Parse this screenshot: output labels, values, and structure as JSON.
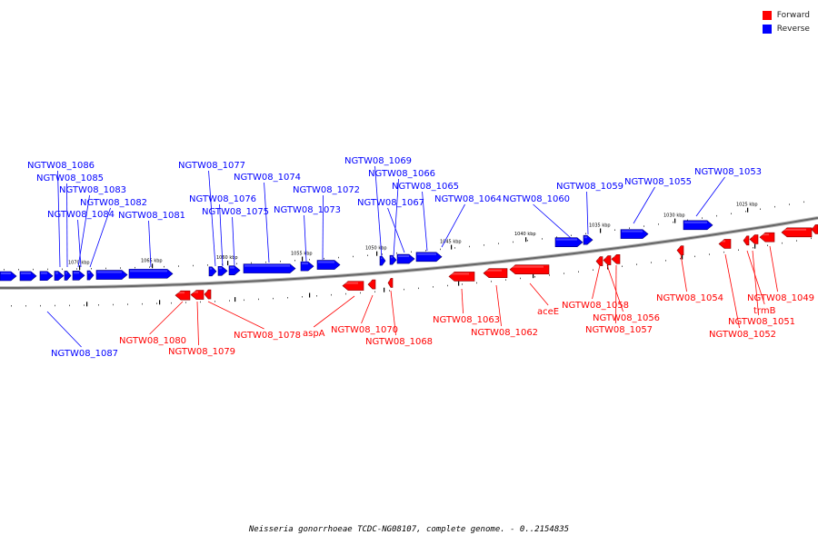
{
  "legend": {
    "forward_label": "Forward",
    "reverse_label": "Reverse",
    "forward_color": "#ff0000",
    "reverse_color": "#0000ff"
  },
  "footer": "Neisseria gonorrhoeae TCDC-NG08107, complete genome. - 0..2154835",
  "ticks": [
    "1070 kbp",
    "1065 kbp",
    "1060 kbp",
    "1055 kbp",
    "1050 kbp",
    "1045 kbp",
    "1040 kbp",
    "1035 kbp",
    "1030 kbp",
    "1025 kbp"
  ],
  "genes": {
    "reverse": [
      "NGTW08_1087",
      "NGTW08_1086",
      "NGTW08_1085",
      "NGTW08_1083",
      "NGTW08_1084",
      "NGTW08_1082",
      "NGTW08_1081",
      "NGTW08_1077",
      "NGTW08_1076",
      "NGTW08_1075",
      "NGTW08_1074",
      "NGTW08_1072",
      "NGTW08_1073",
      "NGTW08_1069",
      "NGTW08_1066",
      "NGTW08_1067",
      "NGTW08_1065",
      "NGTW08_1064",
      "NGTW08_1060",
      "NGTW08_1059",
      "NGTW08_1055",
      "NGTW08_1053"
    ],
    "forward": [
      "NGTW08_1080",
      "NGTW08_1079",
      "NGTW08_1078",
      "aspA",
      "NGTW08_1070",
      "NGTW08_1068",
      "NGTW08_1063",
      "NGTW08_1062",
      "aceE",
      "NGTW08_1058",
      "NGTW08_1056",
      "NGTW08_1057",
      "NGTW08_1054",
      "NGTW08_1049",
      "trmB",
      "NGTW08_1051",
      "NGTW08_1052"
    ]
  }
}
